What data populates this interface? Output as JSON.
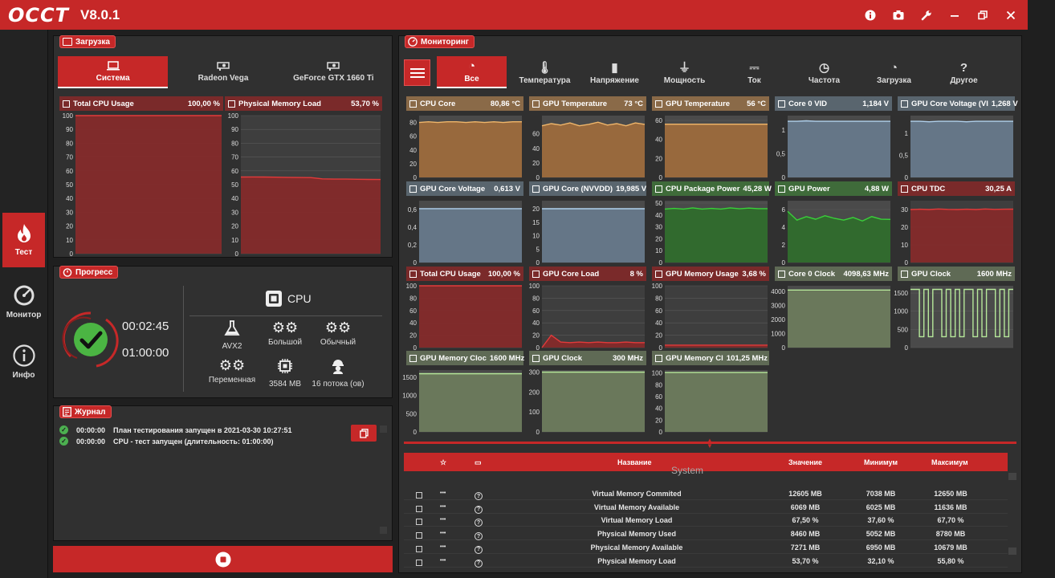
{
  "app": {
    "logo": "OCCT",
    "version": "V8.0.1"
  },
  "window_controls": [
    "info-icon",
    "camera-icon",
    "wrench-icon",
    "minimize-icon",
    "restore-icon",
    "close-icon"
  ],
  "sidebar": {
    "items": [
      {
        "label": "Тест",
        "icon": "flame-icon",
        "active": true
      },
      {
        "label": "Монитор",
        "icon": "gauge-icon",
        "active": false
      },
      {
        "label": "Инфо",
        "icon": "info-icon",
        "active": false
      }
    ]
  },
  "load_panel": {
    "tag": "Загрузка",
    "tabs": [
      {
        "label": "Система",
        "active": true
      },
      {
        "label": "Radeon Vega",
        "active": false
      },
      {
        "label": "GeForce GTX 1660 Ti",
        "active": false
      }
    ]
  },
  "progress_panel": {
    "tag": "Прогресс",
    "elapsed": "00:02:45",
    "total": "01:00:00",
    "device": "CPU",
    "options": [
      {
        "label": "AVX2",
        "icon": "flask-icon"
      },
      {
        "label": "Большой",
        "icon": "gears-icon"
      },
      {
        "label": "Обычный",
        "icon": "gears-icon"
      },
      {
        "label": "Переменная",
        "icon": "gears-icon"
      },
      {
        "label": "3584 MB",
        "icon": "chip-icon"
      },
      {
        "label": "16 потока (ов)",
        "icon": "worker-icon"
      }
    ]
  },
  "journal_panel": {
    "tag": "Журнал",
    "entries": [
      {
        "time": "00:00:00",
        "text": "План тестирования запущен в 2021-03-30 10:27:51"
      },
      {
        "time": "00:00:00",
        "text": "CPU - тест запущен (длительность: 01:00:00)"
      }
    ]
  },
  "monitor_panel": {
    "tag": "Мониторинг",
    "tabs": [
      {
        "label": "Все",
        "active": true
      },
      {
        "label": "Температура"
      },
      {
        "label": "Напряжение"
      },
      {
        "label": "Мощность"
      },
      {
        "label": "Ток"
      },
      {
        "label": "Частота"
      },
      {
        "label": "Загрузка"
      },
      {
        "label": "Другое"
      }
    ]
  },
  "colors": {
    "accent": "#c62828",
    "orange": "#b37536",
    "slate": "#687887",
    "green": "#3e7a36",
    "red": "#8a2c2c",
    "olive": "#727d63"
  },
  "chart_data": [
    {
      "id": "total_cpu_usage_big",
      "type": "area",
      "title": "Total CPU Usage",
      "value": "100,00 %",
      "ylim": [
        0,
        100
      ],
      "yticks": [
        "100",
        "90",
        "80",
        "70",
        "60",
        "50",
        "40",
        "30",
        "20",
        "10",
        "0"
      ],
      "values": [
        100,
        100,
        100,
        100,
        100,
        100,
        100,
        100,
        100,
        100,
        100,
        100
      ],
      "color": "red"
    },
    {
      "id": "physical_memory_load_big",
      "type": "area",
      "title": "Physical Memory Load",
      "value": "53,70 %",
      "ylim": [
        0,
        100
      ],
      "yticks": [
        "100",
        "90",
        "80",
        "70",
        "60",
        "50",
        "40",
        "30",
        "20",
        "10",
        "0"
      ],
      "values": [
        55.5,
        55.6,
        55.5,
        55.4,
        55.3,
        55.2,
        55.1,
        54.2,
        54.0,
        54.0,
        53.9,
        53.8,
        53.7
      ],
      "color": "red"
    },
    {
      "id": "cpu_core",
      "type": "area",
      "title": "CPU Core",
      "value": "80,86 °C",
      "ylim": [
        0,
        90
      ],
      "yticks": [
        "80",
        "60",
        "40",
        "20",
        "0"
      ],
      "values": [
        80,
        81,
        80,
        81,
        81,
        80,
        81,
        80,
        81,
        80,
        81,
        81
      ],
      "color": "orange"
    },
    {
      "id": "gpu_temp_1",
      "type": "area",
      "title": "GPU Temperature",
      "value": "73 °C",
      "ylim": [
        0,
        85
      ],
      "yticks": [
        "60",
        "40",
        "20",
        "0"
      ],
      "values": [
        71,
        74,
        72,
        75,
        71,
        73,
        76,
        72,
        74,
        71,
        75,
        73
      ],
      "color": "orange"
    },
    {
      "id": "gpu_temp_2",
      "type": "area",
      "title": "GPU Temperature",
      "value": "56 °C",
      "ylim": [
        0,
        65
      ],
      "yticks": [
        "60",
        "40",
        "20",
        "0"
      ],
      "values": [
        56,
        56,
        56,
        56,
        56,
        56,
        56,
        56,
        56,
        56,
        56,
        56
      ],
      "color": "orange"
    },
    {
      "id": "core0_vid",
      "type": "area",
      "title": "Core 0 VID",
      "value": "1,184 V",
      "ylim": [
        0,
        1.3
      ],
      "yticks": [
        "1",
        "0,5",
        "0"
      ],
      "values": [
        1.18,
        1.18,
        1.19,
        1.18,
        1.18,
        1.18,
        1.18,
        1.18,
        1.18,
        1.18,
        1.18,
        1.18
      ],
      "color": "slate"
    },
    {
      "id": "gpu_core_voltage_1",
      "type": "area",
      "title": "GPU Core Voltage (VI",
      "value": "1,268 V",
      "ylim": [
        0,
        1.4
      ],
      "yticks": [
        "1",
        "0,5",
        "0"
      ],
      "values": [
        1.27,
        1.27,
        1.26,
        1.27,
        1.27,
        1.27,
        1.26,
        1.27,
        1.27,
        1.27,
        1.27,
        1.27
      ],
      "color": "slate"
    },
    {
      "id": "gpu_core_voltage_2",
      "type": "area",
      "title": "GPU Core Voltage",
      "value": "0,613 V",
      "ylim": [
        0,
        0.7
      ],
      "yticks": [
        "0,6",
        "0,4",
        "0,2",
        "0"
      ],
      "values": [
        0.61,
        0.61,
        0.61,
        0.61,
        0.61,
        0.61,
        0.61,
        0.61,
        0.61,
        0.61,
        0.61,
        0.61
      ],
      "color": "slate"
    },
    {
      "id": "gpu_core_nvvdd",
      "type": "area",
      "title": "GPU Core (NVVDD)",
      "value": "19,985 V",
      "ylim": [
        0,
        23
      ],
      "yticks": [
        "20",
        "15",
        "10",
        "5",
        "0"
      ],
      "values": [
        20,
        20,
        20,
        20,
        20,
        20,
        20,
        20,
        20,
        20,
        20,
        20
      ],
      "color": "slate"
    },
    {
      "id": "cpu_package_power",
      "type": "area",
      "title": "CPU Package Power",
      "value": "45,28 W",
      "ylim": [
        0,
        52
      ],
      "yticks": [
        "50",
        "40",
        "30",
        "20",
        "10",
        "0"
      ],
      "values": [
        45,
        45.5,
        45,
        46,
        45,
        45.5,
        45,
        46,
        45.2,
        45.8,
        45.3,
        45.3
      ],
      "color": "green"
    },
    {
      "id": "gpu_power",
      "type": "area",
      "title": "GPU Power",
      "value": "4,88 W",
      "ylim": [
        0,
        7
      ],
      "yticks": [
        "6",
        "4",
        "2",
        "0"
      ],
      "values": [
        5.8,
        4.8,
        5.2,
        4.9,
        5.3,
        5.0,
        4.8,
        5.1,
        4.7,
        5.2,
        4.9,
        4.88
      ],
      "color": "green"
    },
    {
      "id": "cpu_tdc",
      "type": "area",
      "title": "CPU TDC",
      "value": "30,25 A",
      "ylim": [
        0,
        35
      ],
      "yticks": [
        "30",
        "20",
        "10",
        "0"
      ],
      "values": [
        30,
        30.2,
        30,
        30.3,
        30.1,
        30,
        30.2,
        30,
        30.3,
        30.1,
        30.2,
        30.25
      ],
      "color": "red"
    },
    {
      "id": "total_cpu_usage",
      "type": "area",
      "title": "Total CPU Usage",
      "value": "100,00 %",
      "ylim": [
        0,
        100
      ],
      "yticks": [
        "100",
        "80",
        "60",
        "40",
        "20",
        "0"
      ],
      "values": [
        100,
        100,
        100,
        100,
        100,
        100,
        100,
        100,
        100,
        100,
        100,
        100
      ],
      "color": "red"
    },
    {
      "id": "gpu_core_load",
      "type": "area",
      "title": "GPU Core Load",
      "value": "8 %",
      "ylim": [
        0,
        100
      ],
      "yticks": [
        "100",
        "80",
        "60",
        "40",
        "20",
        "0"
      ],
      "values": [
        0,
        20,
        9,
        8,
        9,
        8,
        9,
        8,
        8,
        9,
        8,
        8
      ],
      "color": "red"
    },
    {
      "id": "gpu_memory_usage",
      "type": "area",
      "title": "GPU Memory Usage",
      "value": "3,68 %",
      "ylim": [
        0,
        100
      ],
      "yticks": [
        "100",
        "80",
        "60",
        "40",
        "20",
        "0"
      ],
      "values": [
        4,
        4,
        4,
        4,
        4,
        4,
        4,
        4,
        4,
        4,
        4,
        4
      ],
      "color": "red"
    },
    {
      "id": "core0_clock",
      "type": "area",
      "title": "Core 0 Clock",
      "value": "4098,63 MHz",
      "ylim": [
        0,
        4400
      ],
      "yticks": [
        "4000",
        "3000",
        "2000",
        "1000",
        "0"
      ],
      "values": [
        4098,
        4098,
        4098,
        4098,
        4098,
        4098,
        4098,
        4098,
        4098,
        4098,
        4098,
        4098
      ],
      "color": "olive"
    },
    {
      "id": "gpu_clock_1",
      "type": "line",
      "title": "GPU Clock",
      "value": "1600 MHz",
      "ylim": [
        0,
        1700
      ],
      "yticks": [
        "1500",
        "1000",
        "500",
        "0"
      ],
      "values": [
        1600,
        1600,
        300,
        1600,
        300,
        1600,
        1600,
        300,
        1600,
        300,
        1600,
        300,
        1600,
        1600,
        300,
        1600,
        300,
        1600,
        1600,
        300,
        1600,
        300,
        1600,
        1600
      ],
      "color": "olive"
    },
    {
      "id": "gpu_memory_clock_1",
      "type": "area",
      "title": "GPU Memory Cloc",
      "value": "1600 MHz",
      "ylim": [
        0,
        1700
      ],
      "yticks": [
        "1500",
        "1000",
        "500",
        "0"
      ],
      "values": [
        1600,
        1600,
        1600,
        1600,
        1600,
        1600,
        1600,
        1600,
        1600,
        1600,
        1600,
        1600
      ],
      "color": "olive"
    },
    {
      "id": "gpu_clock_2",
      "type": "area",
      "title": "GPU Clock",
      "value": "300 MHz",
      "ylim": [
        0,
        310
      ],
      "yticks": [
        "300",
        "200",
        "100",
        "0"
      ],
      "values": [
        300,
        300,
        300,
        300,
        300,
        300,
        300,
        300,
        300,
        300,
        300,
        300
      ],
      "color": "olive"
    },
    {
      "id": "gpu_memory_clock_2",
      "type": "area",
      "title": "GPU Memory Cl",
      "value": "101,25 MHz",
      "ylim": [
        0,
        105
      ],
      "yticks": [
        "100",
        "80",
        "60",
        "40",
        "20",
        "0"
      ],
      "values": [
        101,
        101,
        101,
        101,
        101,
        101,
        101,
        101,
        101,
        101,
        101,
        101
      ],
      "color": "olive"
    }
  ],
  "table": {
    "headers": {
      "name": "Название",
      "value": "Значение",
      "min": "Минимум",
      "max": "Максимум"
    },
    "group": "System",
    "rows": [
      {
        "name": "Virtual Memory Commited",
        "value": "12605 MB",
        "min": "7038 MB",
        "max": "12650 MB"
      },
      {
        "name": "Virtual Memory Available",
        "value": "6069 MB",
        "min": "6025 MB",
        "max": "11636 MB"
      },
      {
        "name": "Virtual Memory Load",
        "value": "67,50 %",
        "min": "37,60 %",
        "max": "67,70 %"
      },
      {
        "name": "Physical Memory Used",
        "value": "8460 MB",
        "min": "5052 MB",
        "max": "8780 MB"
      },
      {
        "name": "Physical Memory Available",
        "value": "7271 MB",
        "min": "6950 MB",
        "max": "10679 MB"
      },
      {
        "name": "Physical Memory Load",
        "value": "53,70 %",
        "min": "32,10 %",
        "max": "55,80 %"
      }
    ]
  }
}
